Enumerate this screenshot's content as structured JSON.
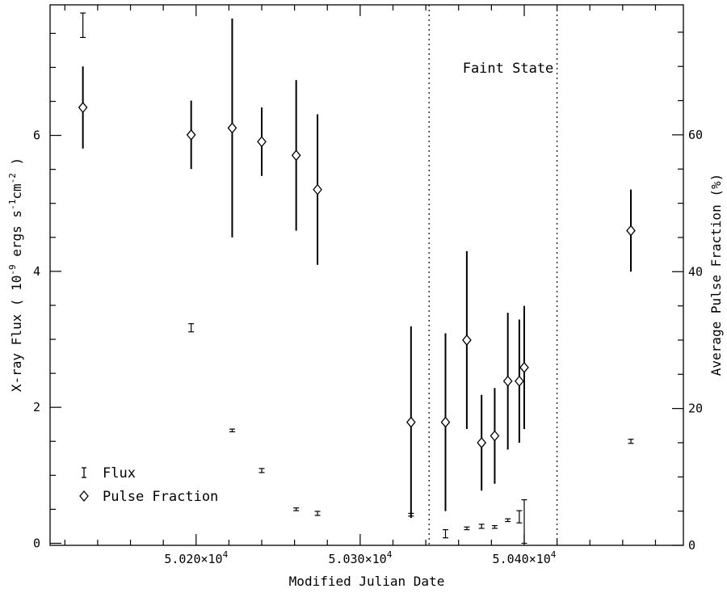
{
  "chart_data": {
    "type": "scatter",
    "title": "",
    "xlabel": "Modified Julian Date",
    "ylabel_left_parts": [
      "X-ray Flux ( 10",
      "-9",
      " ergs s",
      "-1",
      "cm",
      "-2",
      " )"
    ],
    "ylabel_right": "Average Pulse Fraction (%)",
    "xlim": [
      50111,
      50497
    ],
    "ylim_left": [
      -0.03,
      7.92
    ],
    "ylim_right": [
      0,
      79
    ],
    "x_ticks": [
      {
        "value": 50200,
        "base": "5.020×10",
        "exp": "4"
      },
      {
        "value": 50300,
        "base": "5.030×10",
        "exp": "4"
      },
      {
        "value": 50400,
        "base": "5.040×10",
        "exp": "4"
      }
    ],
    "y_ticks_left": [
      "0",
      "2",
      "4",
      "6"
    ],
    "y_ticks_right": [
      "0",
      "20",
      "40",
      "60"
    ],
    "annotation": "Faint State",
    "faint_state_bounds": [
      50342,
      50420
    ],
    "legend": {
      "position": "bottom-left",
      "flux_label": "Flux",
      "pulse_label": "Pulse Fraction"
    },
    "series": [
      {
        "name": "Flux",
        "axis": "left",
        "marker": "errorbar",
        "points": [
          {
            "x": 50131,
            "y": 7.62,
            "err": 0.18
          },
          {
            "x": 50197,
            "y": 3.17,
            "err": 0.06
          },
          {
            "x": 50222,
            "y": 1.66,
            "err": 0.02
          },
          {
            "x": 50240,
            "y": 1.07,
            "err": 0.03
          },
          {
            "x": 50261,
            "y": 0.5,
            "err": 0.02
          },
          {
            "x": 50274,
            "y": 0.44,
            "err": 0.03
          },
          {
            "x": 50331,
            "y": 0.42,
            "err": 0.02
          },
          {
            "x": 50352,
            "y": 0.14,
            "err": 0.06
          },
          {
            "x": 50365,
            "y": 0.22,
            "err": 0.02
          },
          {
            "x": 50374,
            "y": 0.25,
            "err": 0.03
          },
          {
            "x": 50382,
            "y": 0.24,
            "err": 0.02
          },
          {
            "x": 50390,
            "y": 0.34,
            "err": 0.02
          },
          {
            "x": 50397,
            "y": 0.39,
            "err": 0.09
          },
          {
            "x": 50400,
            "y": 0.32,
            "err": 0.32
          },
          {
            "x": 50465,
            "y": 1.5,
            "err": 0.03
          }
        ]
      },
      {
        "name": "Pulse Fraction",
        "axis": "right",
        "marker": "diamond",
        "points": [
          {
            "x": 50131,
            "y": 64,
            "err": 6
          },
          {
            "x": 50197,
            "y": 60,
            "err": 5
          },
          {
            "x": 50222,
            "y": 61,
            "err": 16
          },
          {
            "x": 50240,
            "y": 59,
            "err": 5
          },
          {
            "x": 50261,
            "y": 57,
            "err": 11
          },
          {
            "x": 50274,
            "y": 52,
            "err": 11
          },
          {
            "x": 50331,
            "y": 18,
            "err": 14
          },
          {
            "x": 50352,
            "y": 18,
            "err": 13
          },
          {
            "x": 50365,
            "y": 30,
            "err": 13
          },
          {
            "x": 50374,
            "y": 15,
            "err": 7
          },
          {
            "x": 50382,
            "y": 16,
            "err": 7
          },
          {
            "x": 50390,
            "y": 24,
            "err": 10
          },
          {
            "x": 50397,
            "y": 24,
            "err": 9
          },
          {
            "x": 50400,
            "y": 26,
            "err": 9
          },
          {
            "x": 50465,
            "y": 46,
            "err": 6
          }
        ]
      }
    ]
  }
}
